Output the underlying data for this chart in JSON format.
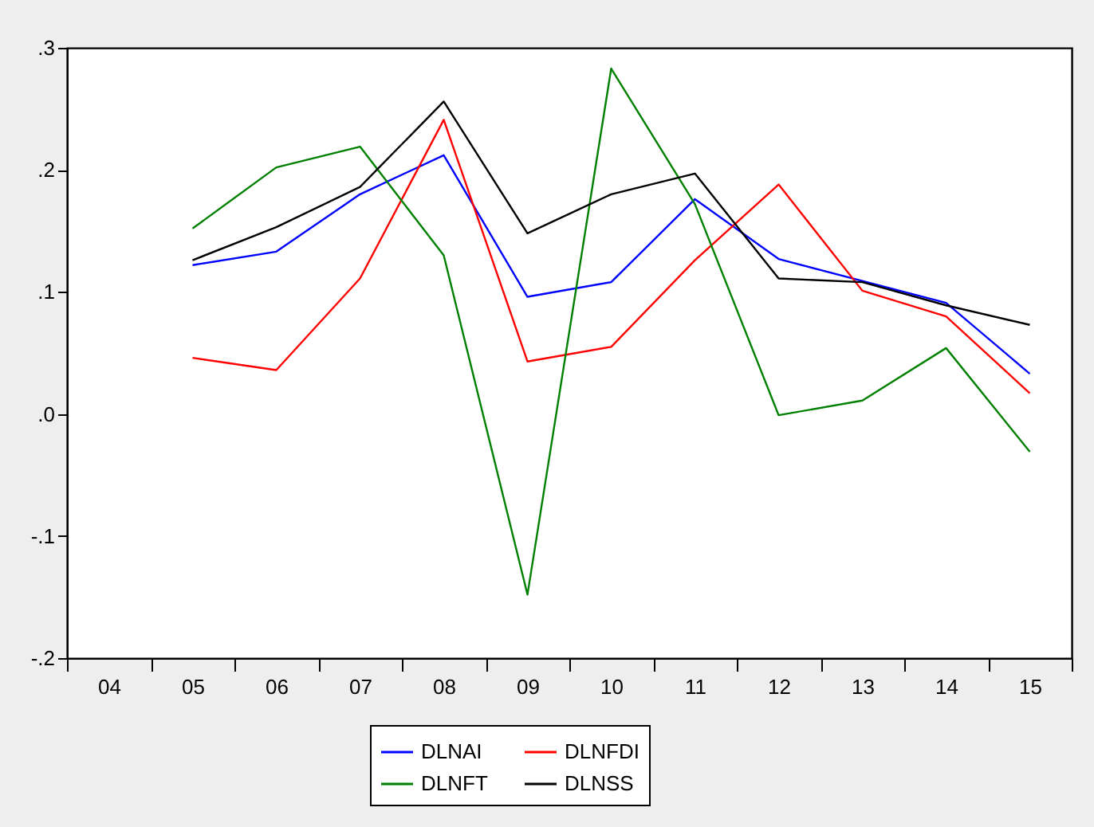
{
  "chart_data": {
    "type": "line",
    "categories": [
      "04",
      "05",
      "06",
      "07",
      "08",
      "09",
      "10",
      "11",
      "12",
      "13",
      "14",
      "15"
    ],
    "series": [
      {
        "name": "DLNAI",
        "color": "#0000ff",
        "values": [
          null,
          0.122,
          0.133,
          0.18,
          0.212,
          0.096,
          0.108,
          0.176,
          0.127,
          0.109,
          0.091,
          0.033
        ]
      },
      {
        "name": "DLNFDI",
        "color": "#ff0000",
        "values": [
          null,
          0.046,
          0.036,
          0.111,
          0.241,
          0.043,
          0.055,
          0.126,
          0.188,
          0.101,
          0.08,
          0.017
        ]
      },
      {
        "name": "DLNFT",
        "color": "#008000",
        "values": [
          null,
          0.152,
          0.202,
          0.219,
          0.13,
          -0.148,
          0.283,
          0.172,
          -0.001,
          0.011,
          0.054,
          -0.031
        ]
      },
      {
        "name": "DLNSS",
        "color": "#000000",
        "values": [
          null,
          0.126,
          0.153,
          0.186,
          0.256,
          0.148,
          0.18,
          0.197,
          0.111,
          0.108,
          0.089,
          0.073
        ]
      }
    ],
    "ylim": [
      -0.2,
      0.3
    ],
    "yticks": [
      {
        "value": -0.2,
        "label": "-.2"
      },
      {
        "value": -0.1,
        "label": "-.1"
      },
      {
        "value": 0.0,
        "label": ".0"
      },
      {
        "value": 0.1,
        "label": ".1"
      },
      {
        "value": 0.2,
        "label": ".2"
      },
      {
        "value": 0.3,
        "label": ".3"
      }
    ],
    "grid": false,
    "legend": "bottom",
    "marker": "none",
    "line_style": "solid"
  }
}
